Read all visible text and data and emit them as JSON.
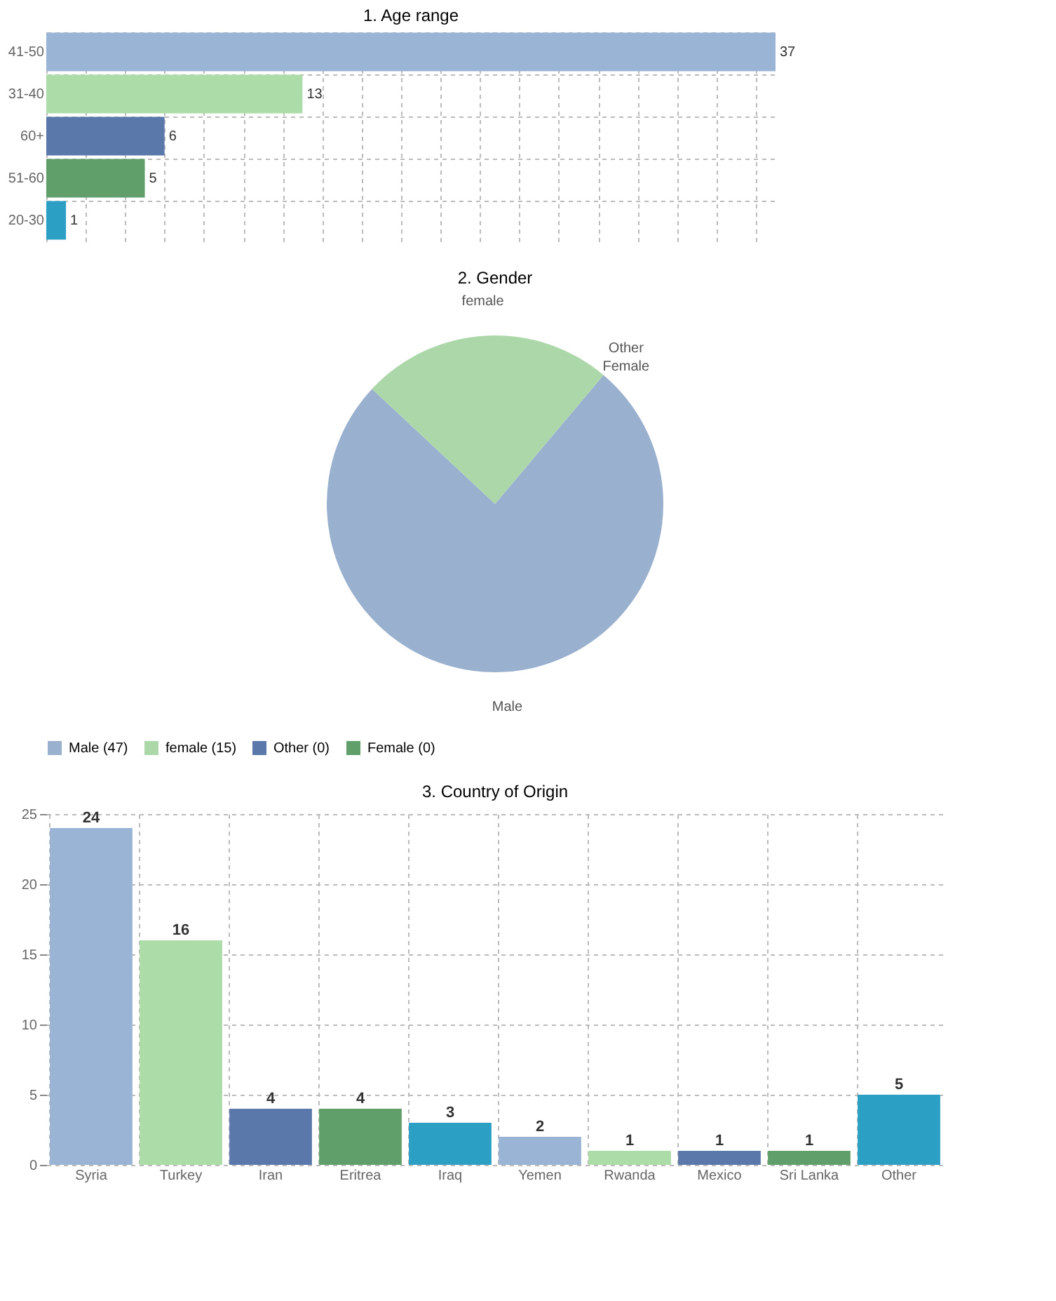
{
  "chart_data": [
    {
      "type": "bar",
      "title": "1. Age range",
      "orientation": "horizontal",
      "categories": [
        "41-50",
        "31-40",
        "60+",
        "51-60",
        "20-30"
      ],
      "values": [
        37,
        13,
        6,
        5,
        1
      ],
      "colors": [
        "#9ab4d6",
        "#acdca8",
        "#5b78aa",
        "#619f6a",
        "#2b9fc4"
      ],
      "data_labels": true,
      "grid": true,
      "tick_labels": "y"
    },
    {
      "type": "pie",
      "title": "2. Gender",
      "categories": [
        "Male (47)",
        "female (15)",
        "Other (0)",
        "Female (0)"
      ],
      "annotations": [
        "Male",
        "female",
        "Other",
        "Female"
      ],
      "values": [
        47,
        15,
        0,
        0
      ],
      "colors": [
        "#9ab0cf",
        "#acd8a9",
        "#5b78aa",
        "#619f6a"
      ],
      "legend": "bottom"
    },
    {
      "type": "bar",
      "title": "3. Country of Origin",
      "categories": [
        "Syria",
        "Turkey",
        "Iran",
        "Eritrea",
        "Iraq",
        "Yemen",
        "Rwanda",
        "Mexico",
        "Sri Lanka",
        "Other"
      ],
      "values": [
        24,
        16,
        4,
        4,
        3,
        2,
        1,
        1,
        1,
        5
      ],
      "colors": [
        "#9ab4d6",
        "#acdca8",
        "#5b78aa",
        "#619f6a",
        "#2b9fc4",
        "#9ab4d6",
        "#acdca8",
        "#5b78aa",
        "#619f6a",
        "#2b9fc4"
      ],
      "ylim": [
        0,
        25
      ],
      "yticks": [
        0,
        5,
        10,
        15,
        20,
        25
      ],
      "data_labels": true,
      "grid": true
    }
  ]
}
